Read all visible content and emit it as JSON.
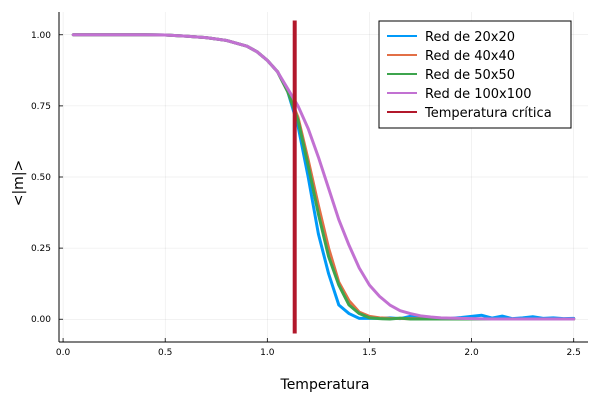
{
  "chart_data": {
    "type": "line",
    "xlabel": "Temperatura",
    "ylabel": "<|m|>",
    "xlim": [
      -0.02,
      2.57
    ],
    "ylim": [
      -0.08,
      1.08
    ],
    "x_ticks": [
      0.0,
      0.5,
      1.0,
      1.5,
      2.0,
      2.5
    ],
    "x_tick_labels": [
      "0.0",
      "0.5",
      "1.0",
      "1.5",
      "2.0",
      "2.5"
    ],
    "y_ticks": [
      0.0,
      0.25,
      0.5,
      0.75,
      1.0
    ],
    "y_tick_labels": [
      "0.00",
      "0.25",
      "0.50",
      "0.75",
      "1.00"
    ],
    "grid": true,
    "legend_position": "top-right",
    "critical_temperature": {
      "name": "Temperatura crítica",
      "x": 1.134,
      "color": "#b2182b"
    },
    "series": [
      {
        "name": "Red de 20x20",
        "color": "#009af9",
        "x": [
          0.05,
          0.1,
          0.2,
          0.3,
          0.4,
          0.5,
          0.6,
          0.7,
          0.8,
          0.85,
          0.9,
          0.95,
          1.0,
          1.05,
          1.1,
          1.15,
          1.2,
          1.25,
          1.3,
          1.35,
          1.4,
          1.45,
          1.5,
          1.55,
          1.6,
          1.65,
          1.7,
          1.75,
          1.8,
          1.85,
          1.9,
          1.95,
          2.0,
          2.05,
          2.1,
          2.15,
          2.2,
          2.25,
          2.3,
          2.35,
          2.4,
          2.45,
          2.5
        ],
        "y": [
          1.0,
          1.0,
          1.0,
          1.0,
          1.0,
          0.999,
          0.995,
          0.99,
          0.98,
          0.97,
          0.96,
          0.94,
          0.91,
          0.87,
          0.8,
          0.68,
          0.5,
          0.3,
          0.16,
          0.05,
          0.02,
          0.003,
          0.003,
          0.003,
          0.005,
          0.002,
          0.01,
          0.003,
          0.004,
          0.002,
          0.003,
          0.006,
          0.01,
          0.014,
          0.004,
          0.011,
          0.002,
          0.005,
          0.009,
          0.003,
          0.005,
          0.002,
          0.003
        ]
      },
      {
        "name": "Red de 40x40",
        "color": "#e26f46",
        "x": [
          0.05,
          0.1,
          0.2,
          0.3,
          0.4,
          0.5,
          0.6,
          0.7,
          0.8,
          0.85,
          0.9,
          0.95,
          1.0,
          1.05,
          1.1,
          1.15,
          1.2,
          1.25,
          1.3,
          1.35,
          1.4,
          1.45,
          1.5,
          1.55,
          1.6,
          1.7,
          1.8,
          1.9,
          2.0,
          2.1,
          2.2,
          2.3,
          2.4,
          2.5
        ],
        "y": [
          1.0,
          1.0,
          1.0,
          1.0,
          1.0,
          0.999,
          0.995,
          0.99,
          0.98,
          0.97,
          0.96,
          0.94,
          0.91,
          0.87,
          0.8,
          0.71,
          0.56,
          0.4,
          0.25,
          0.13,
          0.065,
          0.025,
          0.01,
          0.005,
          0.003,
          0.002,
          0.002,
          0.001,
          0.001,
          0.001,
          0.001,
          0.001,
          0.001,
          0.001
        ]
      },
      {
        "name": "Red de 50x50",
        "color": "#3da44d",
        "x": [
          0.05,
          0.1,
          0.2,
          0.3,
          0.4,
          0.5,
          0.6,
          0.7,
          0.8,
          0.85,
          0.9,
          0.95,
          1.0,
          1.05,
          1.1,
          1.15,
          1.2,
          1.25,
          1.3,
          1.35,
          1.4,
          1.45,
          1.5,
          1.55,
          1.6,
          1.65,
          1.7,
          1.8,
          1.9,
          2.0,
          2.1,
          2.2,
          2.3,
          2.4,
          2.5
        ],
        "y": [
          1.0,
          1.0,
          1.0,
          1.0,
          1.0,
          0.999,
          0.995,
          0.99,
          0.98,
          0.97,
          0.96,
          0.94,
          0.91,
          0.87,
          0.8,
          0.7,
          0.54,
          0.37,
          0.22,
          0.12,
          0.05,
          0.02,
          0.005,
          0.002,
          0.001,
          0.004,
          0.001,
          0.001,
          0.001,
          0.001,
          0.001,
          0.001,
          0.001,
          0.001,
          0.001
        ]
      },
      {
        "name": "Red de 100x100",
        "color": "#c271d2",
        "x": [
          0.05,
          0.1,
          0.2,
          0.3,
          0.4,
          0.5,
          0.6,
          0.7,
          0.8,
          0.85,
          0.9,
          0.95,
          1.0,
          1.05,
          1.1,
          1.15,
          1.2,
          1.25,
          1.3,
          1.35,
          1.4,
          1.45,
          1.5,
          1.55,
          1.6,
          1.65,
          1.7,
          1.75,
          1.8,
          1.85,
          1.9,
          2.0,
          2.1,
          2.2,
          2.3,
          2.4,
          2.5
        ],
        "y": [
          1.0,
          1.0,
          1.0,
          1.0,
          1.0,
          0.999,
          0.995,
          0.99,
          0.98,
          0.97,
          0.96,
          0.94,
          0.91,
          0.87,
          0.81,
          0.75,
          0.67,
          0.57,
          0.46,
          0.35,
          0.26,
          0.18,
          0.12,
          0.08,
          0.05,
          0.03,
          0.02,
          0.012,
          0.008,
          0.005,
          0.004,
          0.002,
          0.001,
          0.001,
          0.001,
          0.001,
          0.001
        ]
      }
    ]
  }
}
